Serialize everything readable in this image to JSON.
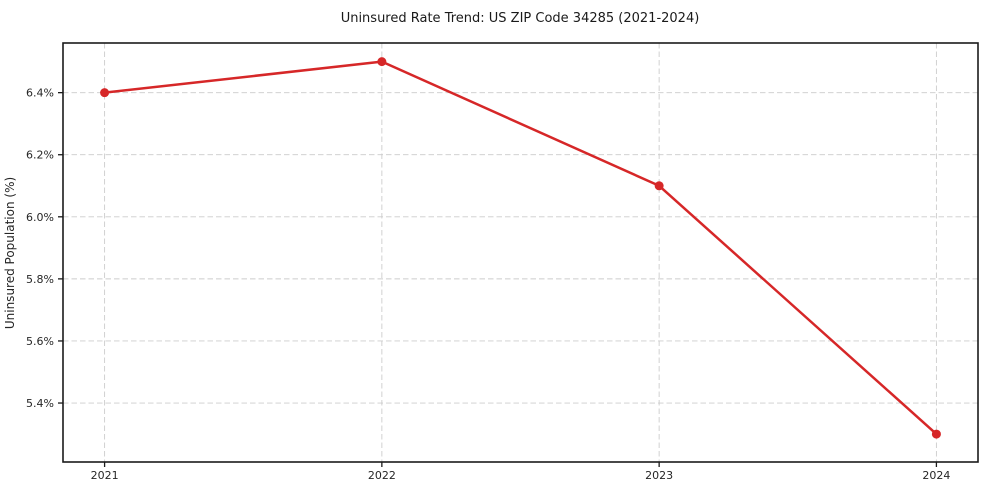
{
  "figure": {
    "title": "Uninsured Rate Trend: US ZIP Code 34285 (2021-2024)"
  },
  "chart_data": {
    "type": "line",
    "title": "Uninsured Rate Trend: US ZIP Code 34285 (2021-2024)",
    "categories": [
      "2021",
      "2022",
      "2023",
      "2024"
    ],
    "x": [
      2021,
      2022,
      2023,
      2024
    ],
    "series": [
      {
        "name": "Uninsured Rate",
        "values": [
          6.4,
          6.5,
          6.1,
          5.3
        ]
      }
    ],
    "xlabel": "",
    "ylabel": "Uninsured Population (%)",
    "yticks": [
      5.4,
      5.6,
      5.8,
      6.0,
      6.2,
      6.4
    ],
    "ytick_labels": [
      "5.4%",
      "5.6%",
      "5.8%",
      "6.0%",
      "6.2%",
      "6.4%"
    ],
    "xtick_labels": [
      "2021",
      "2022",
      "2023",
      "2024"
    ],
    "xlim": [
      2020.85,
      2024.15
    ],
    "ylim": [
      5.21,
      6.56
    ],
    "grid": true,
    "grid_style": "dashed",
    "legend": "none",
    "marker": "circle",
    "colors": {
      "line": "#d62728",
      "grid": "#cccccc",
      "spine": "#1a1a1a",
      "text": "#262626",
      "background": "#ffffff"
    }
  }
}
